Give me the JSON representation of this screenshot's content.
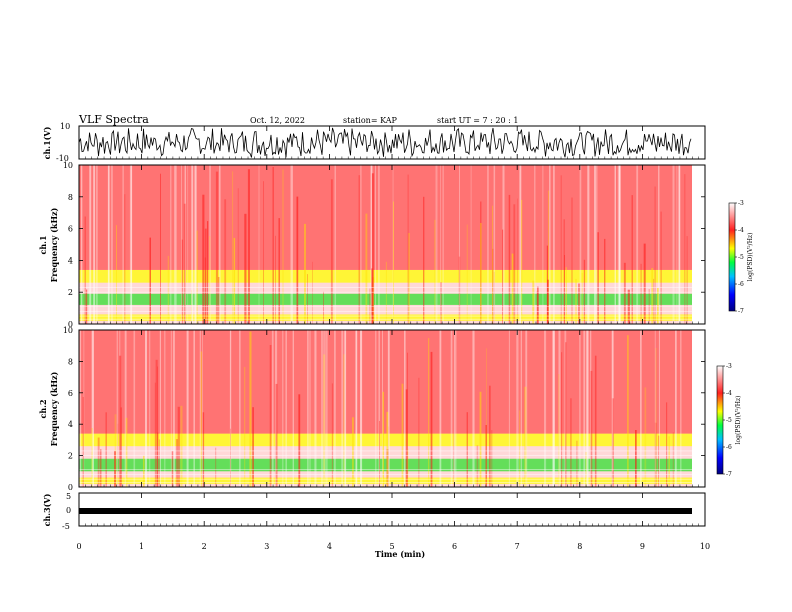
{
  "header": {
    "title": "VLF Spectra",
    "date": "Oct. 12, 2022",
    "station": "station= KAP",
    "start": "start  UT =   7 : 20 : 1"
  },
  "colors": {
    "low": "#ffffff",
    "mid": "#ff2020",
    "high": "#ffff00",
    "peak": "#30e030"
  },
  "chart_data": [
    {
      "type": "line",
      "ylabel": "ch.1(V)",
      "ylim": [
        -10,
        10
      ],
      "yticks": [
        "10",
        "-10"
      ],
      "xlim": [
        0,
        10
      ]
    },
    {
      "type": "heatmap",
      "ylabel_top": "ch.1",
      "ylabel": "Frequency  (kHz)",
      "ylim": [
        0,
        10
      ],
      "yticks": [
        "0",
        "2",
        "4",
        "6",
        "8",
        "10"
      ],
      "xlim": [
        0,
        10
      ],
      "bands": [
        {
          "from": 0.2,
          "to": 0.6,
          "level": "high"
        },
        {
          "from": 1.2,
          "to": 1.9,
          "level": "peak"
        },
        {
          "from": 2.6,
          "to": 3.4,
          "level": "high"
        },
        {
          "from": 3.4,
          "to": 10.0,
          "level": "mid"
        }
      ],
      "colorbar": {
        "label": "log(PSD)(V²/Hz)",
        "ticks": [
          "-3",
          "-4",
          "-5",
          "-6",
          "-7"
        ],
        "range": [
          -7,
          -3
        ]
      }
    },
    {
      "type": "heatmap",
      "ylabel_top": "ch.2",
      "ylabel": "Frequency  (kHz)",
      "ylim": [
        0,
        10
      ],
      "yticks": [
        "0",
        "2",
        "4",
        "6",
        "8",
        "10"
      ],
      "xlim": [
        0,
        10
      ],
      "bands": [
        {
          "from": 0.2,
          "to": 0.6,
          "level": "high"
        },
        {
          "from": 1.0,
          "to": 1.8,
          "level": "peak"
        },
        {
          "from": 2.6,
          "to": 3.4,
          "level": "high"
        },
        {
          "from": 3.4,
          "to": 10.0,
          "level": "mid"
        }
      ],
      "colorbar": {
        "label": "log(PSD)(V²/Hz)",
        "ticks": [
          "-3",
          "-4",
          "-5",
          "-6",
          "-7"
        ],
        "range": [
          -7,
          -3
        ]
      }
    },
    {
      "type": "line",
      "ylabel": "ch.3(V)",
      "ylim": [
        -5,
        5
      ],
      "yticks": [
        "5",
        "0",
        "-5"
      ],
      "xlim": [
        0,
        10
      ],
      "xlabel": "Time  (min)",
      "xticks": [
        "0",
        "1",
        "2",
        "3",
        "4",
        "5",
        "6",
        "7",
        "8",
        "9",
        "10"
      ]
    }
  ]
}
